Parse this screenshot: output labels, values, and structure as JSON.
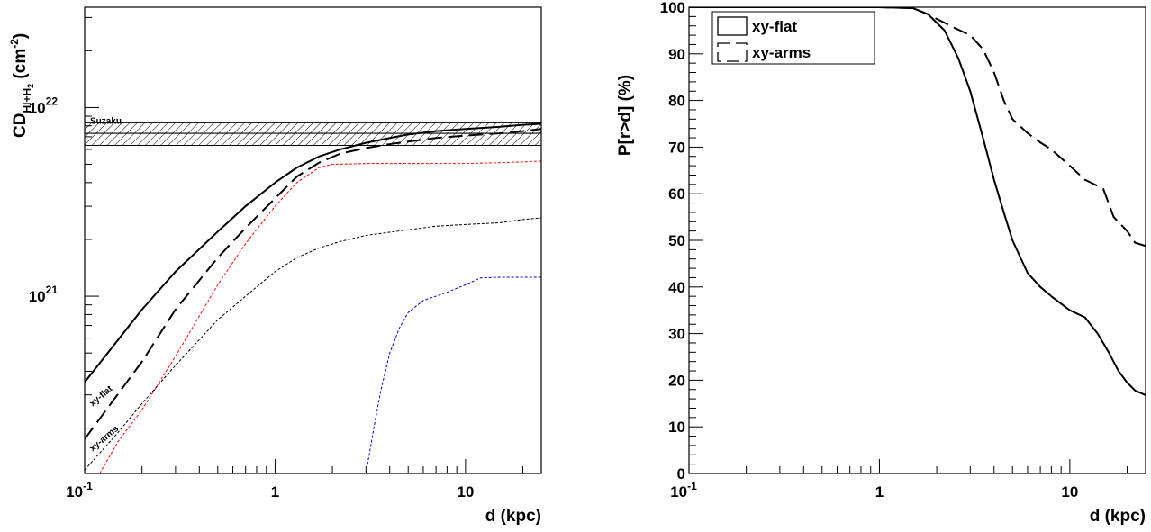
{
  "chart_data": [
    {
      "type": "line",
      "xscale": "log",
      "yscale": "log",
      "xlim": [
        0.1,
        25
      ],
      "ylim": [
        1.15e+20,
        3.4e+22
      ],
      "xlabel": "d (kpc)",
      "ylabel_parts": {
        "main": "CD",
        "sub": "HI+H",
        "sub2": "2",
        "unit": " (cm",
        "unit_sup": "-2",
        "unit_end": ")"
      },
      "x_tick_labels": [
        {
          "x": 0.1,
          "base": "10",
          "exp": "-1"
        },
        {
          "x": 1,
          "base": "1",
          "exp": ""
        },
        {
          "x": 10,
          "base": "10",
          "exp": ""
        }
      ],
      "y_tick_labels": [
        {
          "y": 1e+21,
          "base": "10",
          "exp": "21"
        },
        {
          "y": 1e+22,
          "base": "10",
          "exp": "22"
        }
      ],
      "band": {
        "label": "Suzaku",
        "center": 7.3e+21,
        "low": 6.3e+21,
        "high": 8.3e+21
      },
      "curve_labels": [
        {
          "text": "xy-flat",
          "x": 0.11,
          "y": 2.6e+20
        },
        {
          "text": "xy-arms",
          "x": 0.11,
          "y": 1.5e+20
        }
      ],
      "series": [
        {
          "name": "xy-flat",
          "color": "#000000",
          "dash": "solid",
          "x": [
            0.1,
            0.2,
            0.3,
            0.5,
            0.7,
            1.0,
            1.3,
            1.7,
            2.2,
            3,
            4,
            5,
            7,
            10,
            15,
            20,
            25
          ],
          "y": [
            3.5e+20,
            8.5e+20,
            1.35e+21,
            2.2e+21,
            3e+21,
            4e+21,
            4.8e+21,
            5.5e+21,
            6e+21,
            6.5e+21,
            6.9e+21,
            7.2e+21,
            7.5e+21,
            7.7e+21,
            7.9e+21,
            8.1e+21,
            8.2e+21
          ]
        },
        {
          "name": "xy-arms",
          "color": "#000000",
          "dash": "long",
          "x": [
            0.1,
            0.2,
            0.3,
            0.5,
            0.7,
            1.0,
            1.3,
            1.7,
            2.2,
            3,
            4,
            5,
            7,
            10,
            15,
            20,
            25
          ],
          "y": [
            1.75e+20,
            4.5e+20,
            8.5e+20,
            1.6e+21,
            2.3e+21,
            3.3e+21,
            4.3e+21,
            5.1e+21,
            5.7e+21,
            6.1e+21,
            6.4e+21,
            6.6e+21,
            6.9e+21,
            7.1e+21,
            7.3e+21,
            7.5e+21,
            7.7e+21
          ]
        },
        {
          "name": "",
          "color": "#ff0000",
          "dash": "short",
          "x": [
            0.12,
            0.15,
            0.2,
            0.3,
            0.5,
            0.7,
            1.0,
            1.3,
            1.7,
            2.0,
            3,
            5,
            10,
            15,
            20,
            25
          ],
          "y": [
            1.15e+20,
            1.7e+20,
            2.5e+20,
            4.8e+20,
            1.15e+21,
            1.9e+21,
            3e+21,
            4e+21,
            4.8e+21,
            5e+21,
            5.05e+21,
            5.05e+21,
            5.05e+21,
            5.1e+21,
            5.15e+21,
            5.2e+21
          ]
        },
        {
          "name": "",
          "color": "#000000",
          "dash": "short",
          "x": [
            0.1,
            0.15,
            0.2,
            0.3,
            0.5,
            0.7,
            1.0,
            1.3,
            1.7,
            2.2,
            3,
            5,
            7,
            10,
            15,
            20,
            25
          ],
          "y": [
            1.2e+20,
            1.9e+20,
            2.7e+20,
            4.3e+20,
            7.5e+20,
            1e+21,
            1.35e+21,
            1.6e+21,
            1.8e+21,
            1.95e+21,
            2.1e+21,
            2.25e+21,
            2.35e+21,
            2.4e+21,
            2.45e+21,
            2.55e+21,
            2.6e+21
          ]
        },
        {
          "name": "",
          "color": "#0000cc",
          "dash": "short",
          "x": [
            3.0,
            3.3,
            3.6,
            4.0,
            4.5,
            5.0,
            6.0,
            7.0,
            8.0,
            10,
            12,
            15,
            20,
            25
          ],
          "y": [
            1.15e+20,
            2e+20,
            3.2e+20,
            5e+20,
            6.8e+20,
            8.2e+20,
            9.5e+20,
            1e+21,
            1.05e+21,
            1.15e+21,
            1.25e+21,
            1.26e+21,
            1.26e+21,
            1.26e+21
          ]
        }
      ]
    },
    {
      "type": "line",
      "xscale": "log",
      "yscale": "linear",
      "xlim": [
        0.1,
        25
      ],
      "ylim": [
        0,
        100
      ],
      "xlabel": "d (kpc)",
      "ylabel": "P[r>d] (%)",
      "x_tick_labels": [
        {
          "x": 0.1,
          "base": "10",
          "exp": "-1"
        },
        {
          "x": 1,
          "base": "1",
          "exp": ""
        },
        {
          "x": 10,
          "base": "10",
          "exp": ""
        }
      ],
      "y_tick_labels": [
        "0",
        "10",
        "20",
        "30",
        "40",
        "50",
        "60",
        "70",
        "80",
        "90",
        "100"
      ],
      "legend": {
        "placement": "top-left",
        "entries": [
          "xy-flat",
          "xy-arms"
        ]
      },
      "series": [
        {
          "name": "xy-flat",
          "color": "#000000",
          "dash": "solid",
          "x": [
            0.1,
            0.5,
            1.0,
            1.5,
            1.8,
            2.2,
            2.6,
            3.0,
            3.5,
            4.0,
            4.5,
            5.0,
            6.0,
            7.0,
            8.0,
            10,
            12,
            14,
            16,
            18,
            20,
            22,
            25
          ],
          "y": [
            100,
            100,
            100,
            99.8,
            98.5,
            95,
            89,
            82,
            72,
            63,
            56,
            50,
            43,
            40,
            38,
            35,
            33.5,
            30,
            26,
            22,
            19.5,
            17.8,
            16.8
          ]
        },
        {
          "name": "xy-arms",
          "color": "#000000",
          "dash": "long",
          "x": [
            0.1,
            0.5,
            1.0,
            1.5,
            1.8,
            2.0,
            2.5,
            3.0,
            3.5,
            4.0,
            4.5,
            5.0,
            6.0,
            7.0,
            8.0,
            10,
            12,
            13.5,
            15,
            17,
            20,
            22,
            25
          ],
          "y": [
            100,
            100,
            100,
            99.8,
            98.5,
            97.5,
            95.5,
            94,
            91,
            86,
            80,
            76,
            73,
            71,
            69.5,
            66,
            63,
            62,
            61,
            55,
            52,
            49.5,
            48.8
          ]
        }
      ]
    }
  ]
}
